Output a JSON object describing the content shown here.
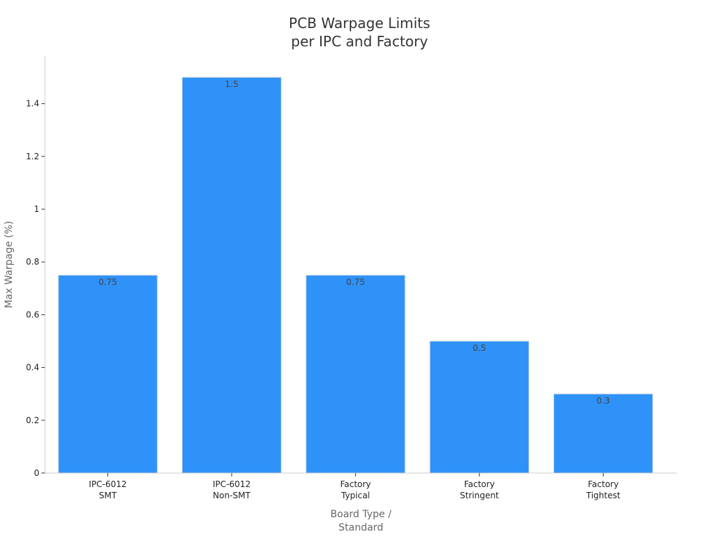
{
  "chart_data": {
    "type": "bar",
    "title_lines": [
      "PCB Warpage Limits",
      "per IPC and Factory"
    ],
    "categories": [
      [
        "IPC-6012",
        "SMT"
      ],
      [
        "IPC-6012",
        "Non-SMT"
      ],
      [
        "Factory",
        "Typical"
      ],
      [
        "Factory",
        "Stringent"
      ],
      [
        "Factory",
        "Tightest"
      ]
    ],
    "values": [
      0.75,
      1.5,
      0.75,
      0.5,
      0.3
    ],
    "data_labels": [
      "0.75",
      "1.5",
      "0.75",
      "0.5",
      "0.3"
    ],
    "xlabel_lines": [
      "Board Type /",
      "Standard"
    ],
    "ylabel": "Max Warpage (%)",
    "ylim": [
      0,
      1.58
    ],
    "yticks": [
      0,
      0.2,
      0.4,
      0.6,
      0.8,
      1,
      1.2,
      1.4
    ],
    "ytick_labels": [
      "0",
      "0.2",
      "0.4",
      "0.6",
      "0.8",
      "1",
      "1.2",
      "1.4"
    ],
    "grid": false,
    "legend": "none",
    "bar_color": "#2f92f8",
    "bar_edge_color": "#e0e0e0"
  }
}
